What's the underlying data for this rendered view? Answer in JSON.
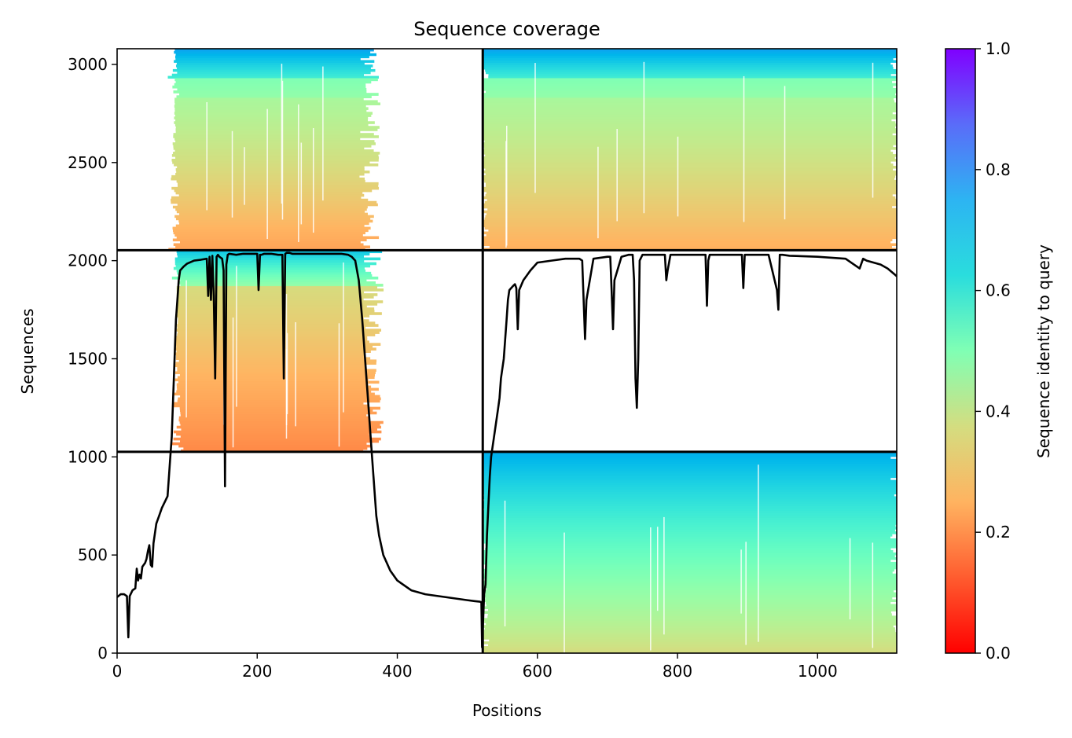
{
  "chart_data": {
    "type": "heatmap",
    "title": "Sequence coverage",
    "xlabel": "Positions",
    "ylabel": "Sequences",
    "xlim": [
      0,
      1113
    ],
    "ylim": [
      0,
      3080
    ],
    "x_ticks": [
      0,
      200,
      400,
      600,
      800,
      1000
    ],
    "y_ticks": [
      0,
      500,
      1000,
      1500,
      2000,
      2500,
      3000
    ],
    "colorbar": {
      "label": "Sequence identity to query",
      "range": [
        0,
        1
      ],
      "ticks": [
        "0.0",
        "0.2",
        "0.4",
        "0.6",
        "0.8",
        "1.0"
      ],
      "colormap": "rainbow_r"
    },
    "chain_boundary_x": [
      522
    ],
    "block_boundaries_y": [
      1026,
      2053
    ],
    "msa_blocks": [
      {
        "name": "chain-1-paired",
        "x": [
          0,
          522
        ],
        "y": [
          2053,
          3080
        ],
        "aligned_x": [
          82,
          355
        ],
        "bands": [
          {
            "y": [
              2930,
              3080
            ],
            "identity": [
              0.62,
              0.78
            ]
          },
          {
            "y": [
              2830,
              2930
            ],
            "identity": [
              0.46,
              0.5
            ]
          },
          {
            "y": [
              2053,
              2830
            ],
            "identity": [
              0.22,
              0.42
            ]
          }
        ]
      },
      {
        "name": "chain-2-paired",
        "x": [
          522,
          1113
        ],
        "y": [
          2053,
          3080
        ],
        "aligned_x": [
          522,
          1113
        ],
        "bands": [
          {
            "y": [
              2930,
              3080
            ],
            "identity": [
              0.62,
              0.78
            ]
          },
          {
            "y": [
              2830,
              2930
            ],
            "identity": [
              0.46,
              0.5
            ]
          },
          {
            "y": [
              2053,
              2830
            ],
            "identity": [
              0.24,
              0.42
            ]
          }
        ]
      },
      {
        "name": "chain-1-unpaired",
        "x": [
          0,
          522
        ],
        "y": [
          1026,
          2053
        ],
        "aligned_x": [
          85,
          360
        ],
        "bands": [
          {
            "y": [
              1870,
              2053
            ],
            "identity": [
              0.45,
              0.72
            ]
          },
          {
            "y": [
              1026,
              1870
            ],
            "identity": [
              0.18,
              0.33
            ]
          }
        ]
      },
      {
        "name": "chain-2-unpaired",
        "x": [
          522,
          1113
        ],
        "y": [
          0,
          1026
        ],
        "aligned_x": [
          522,
          1113
        ],
        "bands": [
          {
            "y": [
              0,
              1026
            ],
            "identity": [
              0.33,
              0.76
            ]
          }
        ]
      }
    ],
    "series": [
      {
        "type": "line",
        "color": "#000000",
        "x": [
          0,
          5,
          10,
          14,
          16,
          18,
          22,
          26,
          28,
          30,
          32,
          34,
          36,
          38,
          40,
          42,
          44,
          46,
          48,
          50,
          52,
          56,
          60,
          64,
          68,
          72,
          76,
          78,
          80,
          82,
          84,
          86,
          88,
          90,
          95,
          100,
          110,
          120,
          128,
          130,
          132,
          134,
          136,
          138,
          140,
          142,
          144,
          146,
          150,
          152,
          154,
          156,
          158,
          160,
          170,
          180,
          200,
          202,
          204,
          206,
          210,
          220,
          230,
          236,
          238,
          240,
          242,
          244,
          246,
          250,
          260,
          270,
          280,
          290,
          300,
          310,
          320,
          330,
          335,
          340,
          345,
          350,
          354,
          358,
          362,
          366,
          370,
          374,
          380,
          390,
          400,
          420,
          440,
          460,
          480,
          500,
          510,
          518,
          520,
          521,
          524,
          526,
          528,
          530,
          532,
          534,
          536,
          538,
          540,
          542,
          544,
          546,
          548,
          550,
          552,
          554,
          556,
          558,
          560,
          565,
          568,
          570,
          572,
          574,
          580,
          590,
          600,
          620,
          640,
          660,
          664,
          666,
          668,
          670,
          680,
          700,
          704,
          706,
          708,
          710,
          720,
          730,
          736,
          738,
          740,
          742,
          744,
          746,
          750,
          780,
          782,
          784,
          786,
          790,
          800,
          820,
          838,
          840,
          842,
          844,
          846,
          850,
          880,
          892,
          894,
          896,
          898,
          900,
          930,
          942,
          944,
          946,
          948,
          950,
          960,
          1000,
          1040,
          1060,
          1065,
          1070,
          1080,
          1090,
          1100,
          1110,
          1113
        ],
        "y": [
          285,
          300,
          300,
          290,
          80,
          290,
          320,
          330,
          430,
          370,
          400,
          380,
          440,
          450,
          460,
          480,
          520,
          550,
          450,
          440,
          560,
          660,
          700,
          740,
          770,
          800,
          1000,
          1100,
          1300,
          1500,
          1700,
          1800,
          1900,
          1950,
          1970,
          1985,
          2000,
          2005,
          2010,
          1820,
          2020,
          1800,
          2025,
          1820,
          1400,
          2020,
          2030,
          2020,
          2010,
          1950,
          850,
          1980,
          2030,
          2035,
          2030,
          2035,
          2035,
          1850,
          2030,
          2030,
          2035,
          2035,
          2030,
          2030,
          1400,
          2035,
          2040,
          2040,
          2040,
          2035,
          2035,
          2035,
          2035,
          2035,
          2035,
          2035,
          2035,
          2030,
          2020,
          2000,
          1900,
          1700,
          1500,
          1300,
          1100,
          900,
          700,
          600,
          500,
          420,
          370,
          320,
          300,
          290,
          280,
          270,
          265,
          262,
          260,
          30,
          300,
          350,
          600,
          750,
          900,
          1000,
          1050,
          1100,
          1150,
          1200,
          1250,
          1300,
          1400,
          1450,
          1500,
          1600,
          1700,
          1800,
          1850,
          1870,
          1880,
          1860,
          1650,
          1850,
          1900,
          1950,
          1990,
          2000,
          2010,
          2010,
          2000,
          1800,
          1600,
          1800,
          2010,
          2020,
          2020,
          1850,
          1650,
          1900,
          2020,
          2030,
          2030,
          1900,
          1400,
          1250,
          1500,
          2000,
          2030,
          2030,
          2030,
          1900,
          1950,
          2030,
          2030,
          2030,
          2030,
          2030,
          1770,
          2000,
          2030,
          2030,
          2030,
          2030,
          1860,
          2030,
          2030,
          2030,
          2030,
          1850,
          1750,
          2030,
          2030,
          2030,
          2025,
          2020,
          2010,
          1960,
          2010,
          2000,
          1990,
          1980,
          1960,
          1930,
          1920
        ]
      }
    ]
  }
}
